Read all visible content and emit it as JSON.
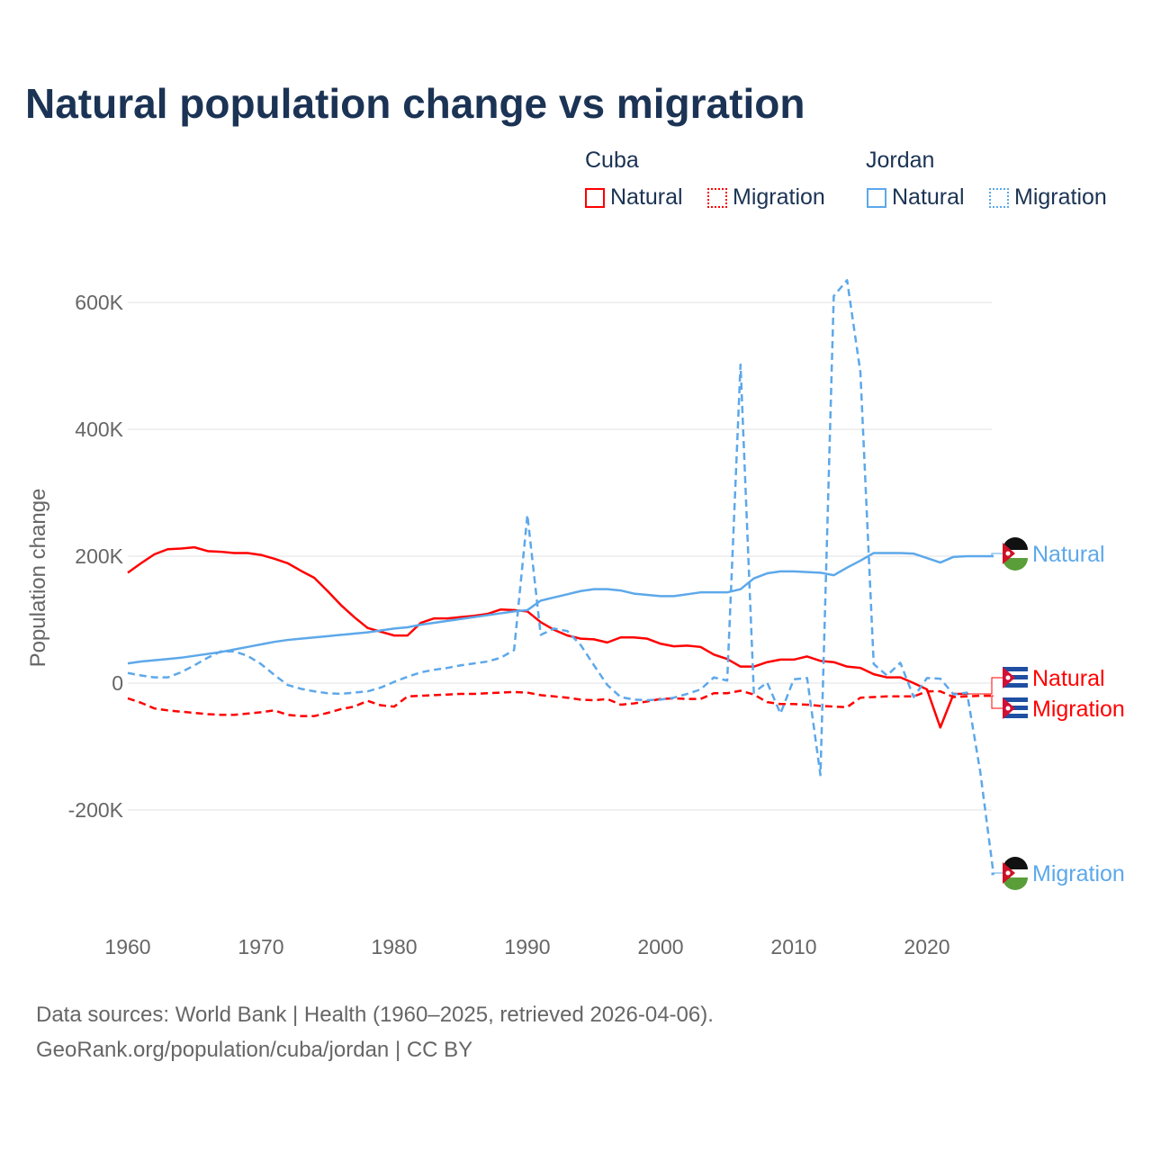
{
  "chart_data": {
    "type": "line",
    "title": "Natural population change vs migration",
    "xlabel": "",
    "ylabel": "Population change",
    "xlim": [
      1960,
      2025
    ],
    "ylim": [
      -300000,
      650000
    ],
    "x_ticks": [
      "1960",
      "1970",
      "1980",
      "1990",
      "2000",
      "2010",
      "2020"
    ],
    "y_ticks": [
      {
        "v": 600000,
        "label": "600K"
      },
      {
        "v": 400000,
        "label": "400K"
      },
      {
        "v": 200000,
        "label": "200K"
      },
      {
        "v": 0,
        "label": "0"
      },
      {
        "v": -200000,
        "label": "-200K"
      }
    ],
    "grid": true,
    "legend_groups": [
      {
        "country": "Cuba",
        "items": [
          "Natural",
          "Migration"
        ]
      },
      {
        "country": "Jordan",
        "items": [
          "Natural",
          "Migration"
        ]
      }
    ],
    "colors": {
      "Cuba": "#ff0000",
      "Jordan": "#5da8ea"
    },
    "series": [
      {
        "name": "Cuba Natural",
        "country": "Cuba",
        "kind": "Natural",
        "dashed": false,
        "end_label": "Natural",
        "start_year": 1960,
        "values": [
          174,
          189,
          203,
          211,
          212,
          214,
          208,
          207,
          205,
          205,
          202,
          196,
          189,
          177,
          166,
          145,
          123,
          104,
          87,
          81,
          75,
          75,
          95,
          102,
          102,
          104,
          106,
          109,
          116,
          115,
          113,
          96,
          84,
          75,
          70,
          69,
          64,
          72,
          72,
          70,
          62,
          58,
          59,
          57,
          45,
          38,
          26,
          26,
          33,
          37,
          37,
          42,
          35,
          33,
          26,
          24,
          14,
          9,
          9,
          0,
          -10,
          -70,
          -17,
          -17
        ]
      },
      {
        "name": "Cuba Migration",
        "country": "Cuba",
        "kind": "Migration",
        "dashed": true,
        "end_label": "Migration",
        "start_year": 1960,
        "values": [
          -24,
          -31,
          -40,
          -43,
          -45,
          -47,
          -49,
          -50,
          -50,
          -48,
          -46,
          -43,
          -50,
          -52,
          -52,
          -47,
          -41,
          -37,
          -28,
          -35,
          -37,
          -21,
          -20,
          -19,
          -18,
          -17,
          -17,
          -16,
          -15,
          -14,
          -15,
          -19,
          -21,
          -23,
          -26,
          -27,
          -25,
          -34,
          -32,
          -29,
          -25,
          -24,
          -25,
          -25,
          -16,
          -16,
          -12,
          -18,
          -30,
          -33,
          -33,
          -34,
          -36,
          -37,
          -38,
          -23,
          -22,
          -21,
          -21,
          -21,
          -13,
          -13,
          -22,
          -21,
          -20,
          -20
        ]
      },
      {
        "name": "Jordan Natural",
        "country": "Jordan",
        "kind": "Natural",
        "dashed": false,
        "end_label": "Natural",
        "start_year": 1960,
        "values": [
          31,
          34,
          36,
          38,
          40,
          43,
          46,
          49,
          53,
          57,
          61,
          65,
          68,
          70,
          72,
          74,
          76,
          78,
          80,
          83,
          86,
          88,
          92,
          95,
          98,
          101,
          104,
          107,
          110,
          113,
          115,
          130,
          135,
          140,
          145,
          148,
          148,
          146,
          141,
          139,
          137,
          137,
          140,
          143,
          143,
          143,
          148,
          165,
          173,
          176,
          176,
          175,
          174,
          170,
          182,
          193,
          205,
          205,
          205,
          204,
          197,
          190,
          199,
          200,
          200,
          200
        ]
      },
      {
        "name": "Jordan Migration",
        "country": "Jordan",
        "kind": "Migration",
        "dashed": true,
        "end_label": "Migration",
        "start_year": 1960,
        "values": [
          16,
          12,
          9,
          9,
          17,
          28,
          40,
          50,
          50,
          43,
          30,
          13,
          -3,
          -9,
          -13,
          -16,
          -17,
          -15,
          -13,
          -7,
          2,
          10,
          17,
          21,
          24,
          28,
          31,
          34,
          40,
          52,
          265,
          76,
          86,
          82,
          60,
          28,
          -3,
          -22,
          -26,
          -27,
          -26,
          -23,
          -17,
          -10,
          9,
          4,
          502,
          -15,
          1,
          -48,
          6,
          8,
          -145,
          610,
          635,
          490,
          30,
          12,
          32,
          -22,
          8,
          7,
          -18,
          -15,
          -140,
          -302
        ]
      }
    ],
    "value_unit": "thousands"
  },
  "footer": {
    "line1": "Data sources: World Bank | Health (1960–2025, retrieved 2026-04-06).",
    "line2": "GeoRank.org/population/cuba/jordan | CC BY"
  }
}
